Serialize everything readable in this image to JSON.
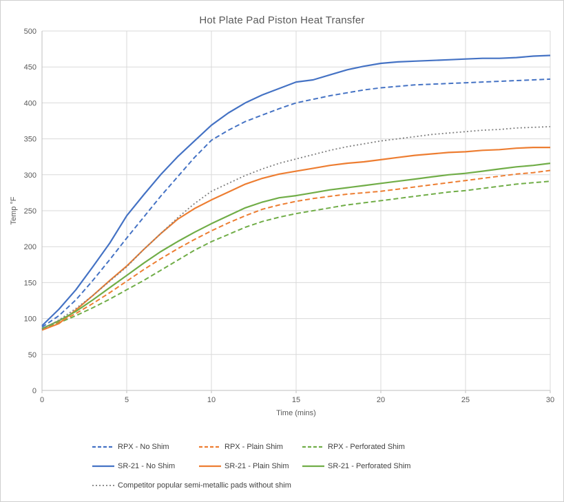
{
  "chart_data": {
    "type": "line",
    "title": "Hot Plate Pad Piston Heat Transfer",
    "xlabel": "Time (mins)",
    "ylabel": "Temp °F",
    "xlim": [
      0,
      30
    ],
    "ylim": [
      0,
      500
    ],
    "x_ticks": [
      0,
      5,
      10,
      15,
      20,
      25,
      30
    ],
    "y_ticks": [
      0,
      50,
      100,
      150,
      200,
      250,
      300,
      350,
      400,
      450,
      500
    ],
    "grid": true,
    "legend_position": "bottom",
    "x": [
      0,
      1,
      2,
      3,
      4,
      5,
      6,
      7,
      8,
      9,
      10,
      11,
      12,
      13,
      14,
      15,
      16,
      17,
      18,
      19,
      20,
      21,
      22,
      23,
      24,
      25,
      26,
      27,
      28,
      29,
      30
    ],
    "series": [
      {
        "name": "RPX - No Shim",
        "color": "#4472C4",
        "line_style": "dashed",
        "values": [
          88,
          104,
          126,
          153,
          182,
          212,
          241,
          270,
          297,
          324,
          348,
          362,
          374,
          383,
          392,
          400,
          405,
          410,
          414,
          418,
          421,
          423,
          425,
          426,
          427,
          428,
          429,
          430,
          431,
          432,
          433
        ]
      },
      {
        "name": "RPX - Plain Shim",
        "color": "#ED7D31",
        "line_style": "dashed",
        "values": [
          85,
          95,
          107,
          121,
          136,
          152,
          168,
          183,
          197,
          210,
          222,
          233,
          243,
          252,
          258,
          263,
          267,
          270,
          273,
          275,
          277,
          280,
          283,
          286,
          289,
          292,
          295,
          298,
          301,
          303,
          306
        ]
      },
      {
        "name": "RPX - Perforated Shim",
        "color": "#70AD47",
        "line_style": "dashed",
        "values": [
          86,
          94,
          104,
          115,
          127,
          140,
          153,
          167,
          181,
          195,
          207,
          217,
          227,
          235,
          241,
          246,
          250,
          254,
          258,
          261,
          264,
          267,
          270,
          273,
          276,
          278,
          281,
          284,
          287,
          289,
          291
        ]
      },
      {
        "name": "SR-21 - No Shim",
        "color": "#4472C4",
        "line_style": "solid",
        "values": [
          90,
          113,
          140,
          172,
          205,
          243,
          272,
          300,
          325,
          347,
          369,
          386,
          400,
          411,
          420,
          429,
          432,
          439,
          446,
          451,
          455,
          457,
          458,
          459,
          460,
          461,
          462,
          462,
          463,
          465,
          466
        ]
      },
      {
        "name": "SR-21 - Plain Shim",
        "color": "#ED7D31",
        "line_style": "solid",
        "values": [
          84,
          93,
          112,
          132,
          153,
          173,
          196,
          218,
          238,
          253,
          265,
          276,
          287,
          295,
          301,
          305,
          309,
          313,
          316,
          318,
          321,
          324,
          327,
          329,
          331,
          332,
          334,
          335,
          337,
          338,
          338
        ]
      },
      {
        "name": "SR-21 - Perforated Shim",
        "color": "#70AD47",
        "line_style": "solid",
        "values": [
          86,
          97,
          110,
          126,
          143,
          160,
          177,
          193,
          207,
          220,
          232,
          243,
          254,
          262,
          268,
          271,
          275,
          279,
          282,
          285,
          288,
          291,
          294,
          297,
          300,
          302,
          305,
          308,
          311,
          313,
          316
        ]
      },
      {
        "name": "Competitor popular semi-metallic pads without shim",
        "color": "#7F7F7F",
        "line_style": "dotted",
        "values": [
          85,
          98,
          114,
          132,
          152,
          172,
          196,
          218,
          240,
          260,
          277,
          288,
          299,
          308,
          316,
          322,
          328,
          334,
          339,
          343,
          347,
          350,
          353,
          356,
          358,
          360,
          362,
          363,
          365,
          366,
          367
        ]
      }
    ],
    "style": {
      "title_color": "#595959",
      "axis_text_color": "#595959",
      "gridline_color": "#d9d9d9",
      "axis_line_color": "#bfbfbf",
      "legend_text_color": "#404040"
    }
  }
}
